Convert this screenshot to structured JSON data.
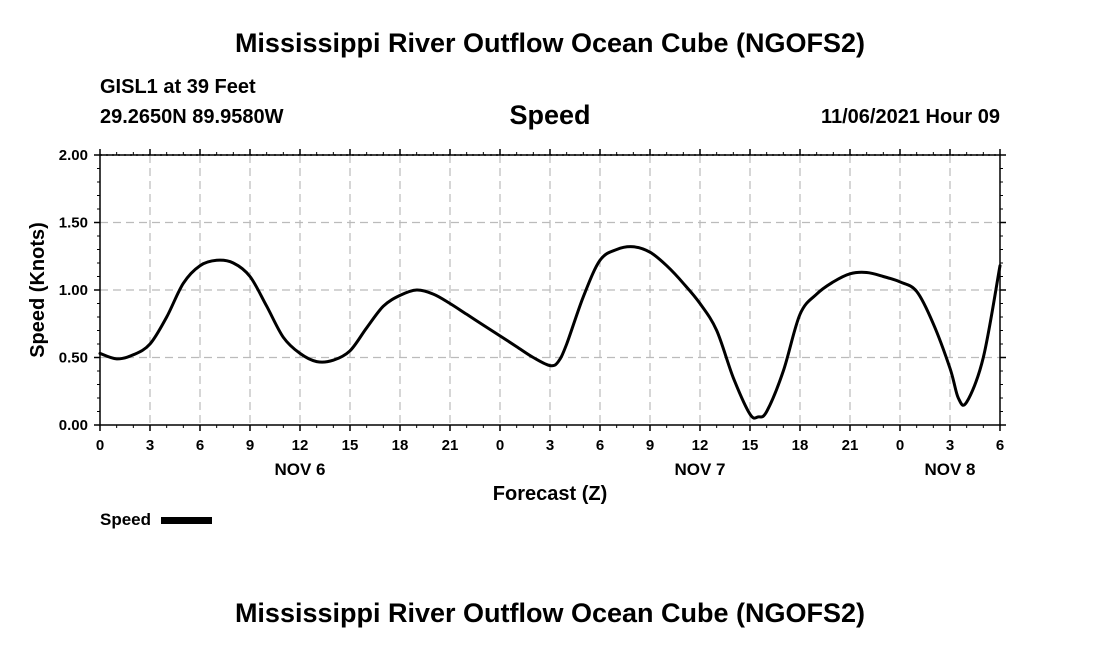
{
  "header": {
    "title": "Mississippi River Outflow Ocean Cube (NGOFS2)",
    "station": "GISL1 at 39 Feet",
    "coordinates": "29.2650N  89.9580W",
    "variable": "Speed",
    "datetime": "11/06/2021 Hour 09"
  },
  "footer": {
    "title": "Mississippi River Outflow Ocean Cube (NGOFS2)"
  },
  "chart_data": {
    "type": "line",
    "title": "Speed",
    "xlabel": "Forecast (Z)",
    "ylabel": "Speed (Knots)",
    "xlim": [
      0,
      54
    ],
    "ylim": [
      0,
      2
    ],
    "grid": true,
    "y_ticks": [
      0,
      0.5,
      1.0,
      1.5,
      2.0
    ],
    "y_tick_labels": [
      "0.00",
      "0.50",
      "1.00",
      "1.50",
      "2.00"
    ],
    "x_ticks": [
      0,
      3,
      6,
      9,
      12,
      15,
      18,
      21,
      24,
      27,
      30,
      33,
      36,
      39,
      42,
      45,
      48,
      51,
      54
    ],
    "x_tick_labels": [
      "0",
      "3",
      "6",
      "9",
      "12",
      "15",
      "18",
      "21",
      "0",
      "3",
      "6",
      "9",
      "12",
      "15",
      "18",
      "21",
      "0",
      "3",
      "6"
    ],
    "date_labels": [
      {
        "x": 12,
        "label": "NOV 6"
      },
      {
        "x": 36,
        "label": "NOV 7"
      },
      {
        "x": 51,
        "label": "NOV 8"
      }
    ],
    "legend": {
      "label": "Speed",
      "placement": "bottom-left"
    },
    "series": [
      {
        "name": "Speed",
        "color": "#000000",
        "x": [
          0,
          1,
          2,
          3,
          4,
          5,
          6,
          7,
          8,
          9,
          10,
          11,
          12,
          13,
          14,
          15,
          16,
          17,
          18,
          19,
          20,
          21,
          22,
          23,
          24,
          25,
          26,
          27,
          27.5,
          28,
          29,
          30,
          31,
          32,
          33,
          34,
          35,
          36,
          37,
          38,
          39,
          39.5,
          40,
          41,
          42,
          43,
          44,
          45,
          46,
          47,
          48,
          49,
          50,
          51,
          51.5,
          52,
          53,
          54
        ],
        "values": [
          0.53,
          0.49,
          0.52,
          0.6,
          0.8,
          1.05,
          1.18,
          1.22,
          1.2,
          1.1,
          0.88,
          0.65,
          0.53,
          0.47,
          0.48,
          0.55,
          0.72,
          0.88,
          0.96,
          1.0,
          0.97,
          0.9,
          0.82,
          0.74,
          0.66,
          0.58,
          0.5,
          0.44,
          0.47,
          0.6,
          0.95,
          1.22,
          1.3,
          1.32,
          1.28,
          1.18,
          1.05,
          0.9,
          0.7,
          0.35,
          0.08,
          0.06,
          0.1,
          0.4,
          0.82,
          0.97,
          1.06,
          1.12,
          1.13,
          1.1,
          1.06,
          0.99,
          0.75,
          0.42,
          0.2,
          0.17,
          0.5,
          1.18
        ]
      }
    ]
  }
}
